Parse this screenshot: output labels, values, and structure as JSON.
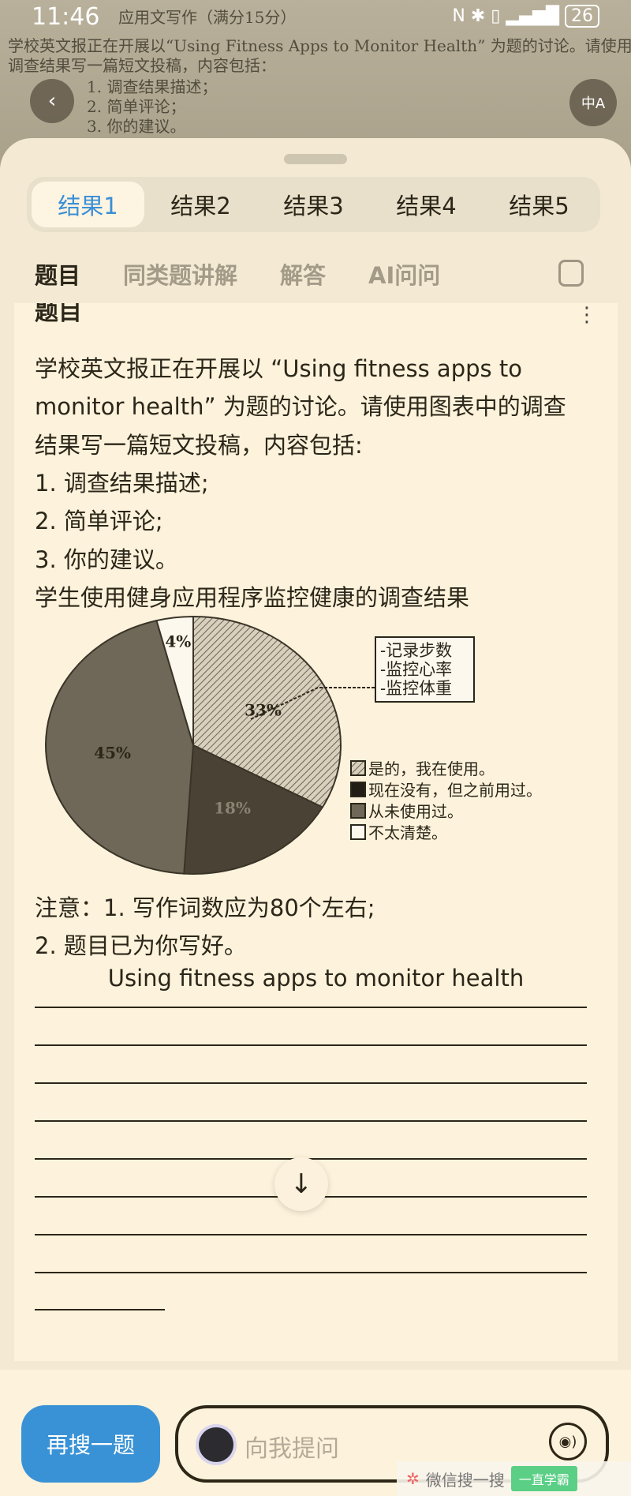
{
  "status": {
    "time": "11:46",
    "battery": "26"
  },
  "photo_lines": [
    "应用文写作（满分15分）",
    "学校英文报正在开展以“Using Fitness Apps to Monitor Health” 为题的讨论。请使用图表中",
    "调查结果写一篇短文投稿，内容包括：",
    "1. 调查结果描述；",
    "2. 简单评论；",
    "3. 你的建议。"
  ],
  "tabs": [
    "结果1",
    "结果2",
    "结果3",
    "结果4",
    "结果5"
  ],
  "subtabs": [
    "题目",
    "同类题讲解",
    "解答",
    "AI问问"
  ],
  "card": {
    "heading": "题目",
    "lines": [
      "学校英文报正在开展以 “Using fitness apps to",
      "monitor health” 为题的讨论。请使用图表中的调查",
      "结果写一篇短文投稿，内容包括:",
      "1. 调查结果描述;",
      "2. 简单评论;",
      "3. 你的建议。",
      "学生使用健身应用程序监控健康的调查结果"
    ],
    "notes": [
      "注意：1. 写作词数应为80个左右;",
      "2. 题目已为你写好。"
    ],
    "essay_title": "Using fitness apps to monitor health"
  },
  "chart_data": {
    "type": "pie",
    "title": "学生使用健身应用程序监控健康的调查结果",
    "slices": [
      {
        "label": "是的，我在使用。",
        "value": 33,
        "text": "33%",
        "fill": "hatched"
      },
      {
        "label": "现在没有，但之前用过。",
        "value": 18,
        "text": "18%",
        "fill": "#4a4235"
      },
      {
        "label": "从未使用过。",
        "value": 45,
        "text": "45%",
        "fill": "#6f6858"
      },
      {
        "label": "不太清楚。",
        "value": 4,
        "text": "4%",
        "fill": "#fdf8ee"
      }
    ],
    "callout": [
      "-记录步数",
      "-监控心率",
      "-监控体重"
    ],
    "legend_position": "right"
  },
  "bottom": {
    "again": "再搜一题",
    "ask_placeholder": "向我提问"
  },
  "watermark": {
    "text": "微信搜一搜",
    "search": "一直学霸"
  }
}
